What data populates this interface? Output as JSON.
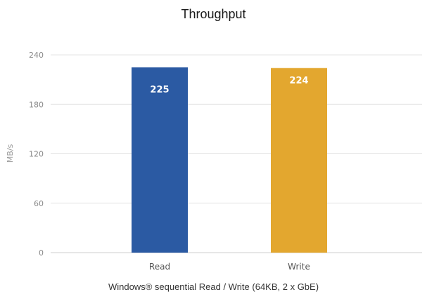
{
  "chart_data": {
    "type": "bar",
    "title": "Throughput",
    "caption": "Windows® sequential Read / Write (64KB, 2 x GbE)",
    "ylabel": "MB/s",
    "xlabel": "",
    "ylim": [
      0,
      240
    ],
    "yticks": [
      "0",
      "60",
      "120",
      "180",
      "240"
    ],
    "grid": true,
    "categories": [
      "Read",
      "Write"
    ],
    "values": [
      225,
      224
    ],
    "data_labels": [
      "225",
      "224"
    ],
    "colors": [
      "#2b5aa3",
      "#e3a72f"
    ]
  }
}
